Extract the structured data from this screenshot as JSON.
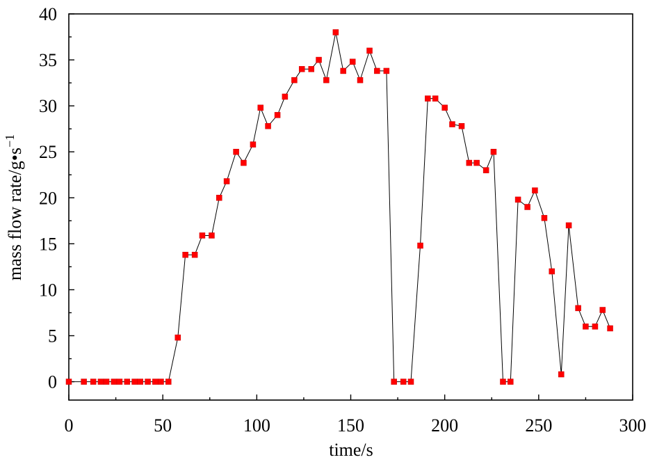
{
  "chart_data": {
    "type": "line",
    "title": "",
    "xlabel": "time/s",
    "ylabel": "mass flow rate/g•s",
    "ylabel_superscript": "−1",
    "xlim": [
      0,
      300
    ],
    "ylim": [
      -2,
      40
    ],
    "x_ticks": [
      0,
      50,
      100,
      150,
      200,
      250,
      300
    ],
    "y_ticks": [
      0,
      5,
      10,
      15,
      20,
      25,
      30,
      35,
      40
    ],
    "x_tick_labels": [
      "0",
      "50",
      "100",
      "150",
      "200",
      "250",
      "300"
    ],
    "y_tick_labels": [
      "0",
      "5",
      "10",
      "15",
      "20",
      "25",
      "30",
      "35",
      "40"
    ],
    "grid": false,
    "legend": false,
    "marker_color": "#ff0000",
    "line_color": "#000000",
    "series": [
      {
        "x": [
          0,
          8,
          13,
          17,
          20,
          24,
          27,
          31,
          35,
          38,
          42,
          46,
          49,
          53,
          58,
          62,
          67,
          71,
          76,
          80,
          84,
          89,
          93,
          98,
          102,
          106,
          111,
          115,
          120,
          124,
          129,
          133,
          137,
          142,
          146,
          151,
          155,
          160,
          164,
          169,
          173,
          178,
          182,
          187,
          191,
          195,
          200,
          204,
          209,
          213,
          217,
          222,
          226,
          231,
          235,
          239,
          244,
          248,
          253,
          257,
          262,
          266,
          271,
          275,
          280,
          284,
          288
        ],
        "y": [
          0,
          0,
          0,
          0,
          0,
          0,
          0,
          0,
          0,
          0,
          0,
          0,
          0,
          0,
          4.8,
          13.8,
          13.8,
          15.9,
          15.9,
          20.0,
          21.8,
          25.0,
          23.8,
          25.8,
          29.8,
          27.8,
          29.0,
          31.0,
          32.8,
          34.0,
          34.0,
          35.0,
          32.8,
          38.0,
          33.8,
          34.8,
          32.8,
          36.0,
          33.8,
          33.8,
          0,
          0,
          0,
          14.8,
          30.8,
          30.8,
          29.8,
          28.0,
          27.8,
          23.8,
          23.8,
          23.0,
          25.0,
          0,
          0,
          19.8,
          19.0,
          20.8,
          17.8,
          12.0,
          0.8,
          17.0,
          8.0,
          6.0,
          6.0,
          7.8,
          5.8
        ]
      }
    ]
  }
}
